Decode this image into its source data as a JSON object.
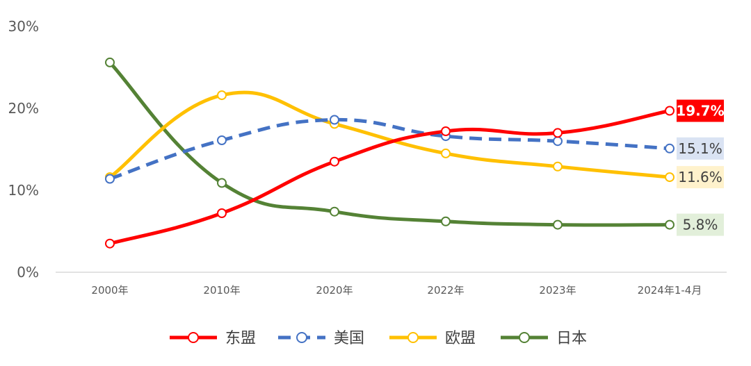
{
  "chart_data": {
    "type": "line",
    "categories": [
      "2000年",
      "2010年",
      "2020年",
      "2022年",
      "2023年",
      "2024年1-4月"
    ],
    "ylim": [
      0,
      30
    ],
    "y_ticks": [
      "0%",
      "10%",
      "20%",
      "30%"
    ],
    "grid": false,
    "legend_position": "bottom",
    "series": [
      {
        "name": "东盟",
        "values": [
          3.5,
          7.2,
          13.5,
          17.2,
          17.0,
          19.7
        ],
        "color": "#ff0000",
        "dash": "solid",
        "end_label": "19.7%",
        "label_bg": "#ff0000",
        "label_color": "#ffffff"
      },
      {
        "name": "美国",
        "values": [
          11.4,
          16.1,
          18.6,
          16.6,
          16.0,
          15.1
        ],
        "color": "#4472c4",
        "dash": "dashed",
        "end_label": "15.1%",
        "label_bg": "#dae3f3",
        "label_color": "#404040"
      },
      {
        "name": "欧盟",
        "values": [
          11.6,
          21.6,
          18.1,
          14.5,
          12.9,
          11.6
        ],
        "color": "#ffc000",
        "dash": "solid",
        "end_label": "11.6%",
        "label_bg": "#fff2cc",
        "label_color": "#404040"
      },
      {
        "name": "日本",
        "values": [
          25.6,
          10.9,
          7.4,
          6.2,
          5.8,
          5.8
        ],
        "color": "#548235",
        "dash": "solid",
        "end_label": "5.8%",
        "label_bg": "#e2efda",
        "label_color": "#404040"
      }
    ]
  }
}
